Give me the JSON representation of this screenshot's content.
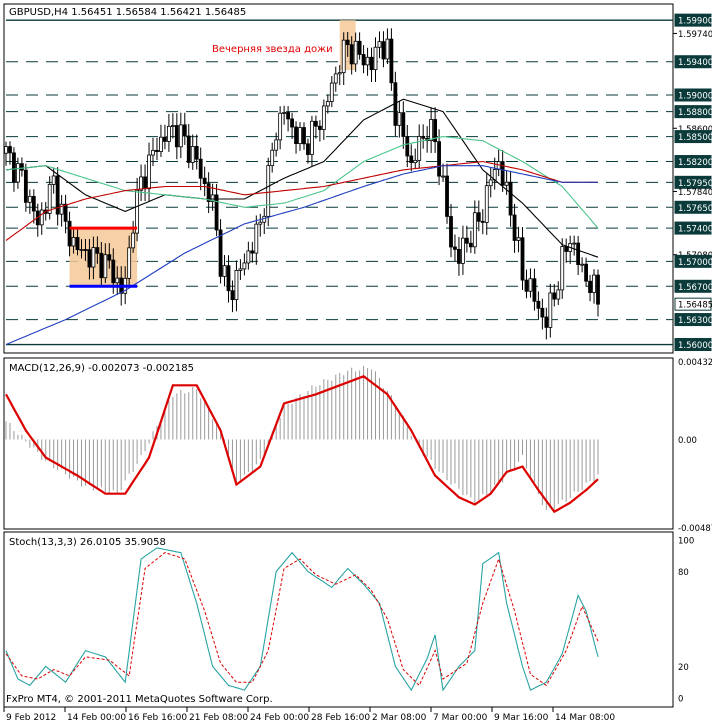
{
  "chart_data": [
    {
      "type": "candlestick",
      "title": "GBPUSD,H4  1.56451 1.56584 1.56421 1.56485",
      "annotation": "Вечерняя звезда дожи",
      "y_axis_labels": [
        {
          "label": "1.59900",
          "boxed": true
        },
        {
          "label": "1.59740",
          "boxed": false
        },
        {
          "label": "1.59400",
          "boxed": true
        },
        {
          "label": "1.59000",
          "boxed": true
        },
        {
          "label": "1.58800",
          "boxed": true
        },
        {
          "label": "1.58600",
          "boxed": false
        },
        {
          "label": "1.58500",
          "boxed": true
        },
        {
          "label": "1.58200",
          "boxed": true
        },
        {
          "label": "1.57950",
          "boxed": true
        },
        {
          "label": "1.57840",
          "boxed": false
        },
        {
          "label": "1.57650",
          "boxed": true
        },
        {
          "label": "1.57400",
          "boxed": true
        },
        {
          "label": "1.57080",
          "boxed": false
        },
        {
          "label": "1.57000",
          "boxed": true
        },
        {
          "label": "1.56700",
          "boxed": true
        },
        {
          "label": "1.56485",
          "boxed": true,
          "current": true
        },
        {
          "label": "1.56300",
          "boxed": true
        },
        {
          "label": "1.56000",
          "boxed": true
        }
      ],
      "horizontal_levels": [
        1.599,
        1.594,
        1.59,
        1.588,
        1.585,
        1.582,
        1.5795,
        1.5765,
        1.574,
        1.57,
        1.567,
        1.563,
        1.56
      ],
      "ylim": [
        1.5591,
        1.6007
      ],
      "n_bars": 150,
      "closes_key": [
        [
          0,
          1.583
        ],
        [
          4,
          1.58
        ],
        [
          8,
          1.5745
        ],
        [
          12,
          1.5795
        ],
        [
          15,
          1.574
        ],
        [
          18,
          1.5715
        ],
        [
          22,
          1.5705
        ],
        [
          26,
          1.5695
        ],
        [
          29,
          1.5665
        ],
        [
          30,
          1.5675
        ],
        [
          32,
          1.575
        ],
        [
          34,
          1.5795
        ],
        [
          38,
          1.584
        ],
        [
          42,
          1.586
        ],
        [
          45,
          1.5845
        ],
        [
          48,
          1.582
        ],
        [
          50,
          1.579
        ],
        [
          52,
          1.577
        ],
        [
          54,
          1.57
        ],
        [
          56,
          1.566
        ],
        [
          58,
          1.568
        ],
        [
          60,
          1.57
        ],
        [
          62,
          1.572
        ],
        [
          64,
          1.5745
        ],
        [
          66,
          1.58
        ],
        [
          68,
          1.586
        ],
        [
          70,
          1.588
        ],
        [
          72,
          1.586
        ],
        [
          75,
          1.584
        ],
        [
          78,
          1.586
        ],
        [
          80,
          1.588
        ],
        [
          82,
          1.591
        ],
        [
          84,
          1.594
        ],
        [
          86,
          1.596
        ],
        [
          88,
          1.595
        ],
        [
          90,
          1.5945
        ],
        [
          92,
          1.5935
        ],
        [
          94,
          1.5965
        ],
        [
          96,
          1.595
        ],
        [
          98,
          1.588
        ],
        [
          100,
          1.585
        ],
        [
          102,
          1.5815
        ],
        [
          104,
          1.584
        ],
        [
          106,
          1.586
        ],
        [
          108,
          1.5845
        ],
        [
          110,
          1.579
        ],
        [
          112,
          1.572
        ],
        [
          114,
          1.5705
        ],
        [
          116,
          1.5725
        ],
        [
          118,
          1.574
        ],
        [
          120,
          1.576
        ],
        [
          122,
          1.58
        ],
        [
          124,
          1.582
        ],
        [
          126,
          1.578
        ],
        [
          128,
          1.574
        ],
        [
          130,
          1.568
        ],
        [
          132,
          1.567
        ],
        [
          134,
          1.564
        ],
        [
          136,
          1.563
        ],
        [
          138,
          1.566
        ],
        [
          140,
          1.57
        ],
        [
          142,
          1.573
        ],
        [
          144,
          1.57
        ],
        [
          146,
          1.568
        ],
        [
          148,
          1.5665
        ],
        [
          149,
          1.56485
        ]
      ],
      "moving_averages": [
        {
          "name": "",
          "color": "#000000",
          "points": [
            [
              0,
              1.581
            ],
            [
              10,
              1.5815
            ],
            [
              20,
              1.578
            ],
            [
              30,
              1.576
            ],
            [
              40,
              1.578
            ],
            [
              50,
              1.5775
            ],
            [
              60,
              1.5775
            ],
            [
              70,
              1.58
            ],
            [
              80,
              1.582
            ],
            [
              90,
              1.587
            ],
            [
              100,
              1.5895
            ],
            [
              110,
              1.588
            ],
            [
              120,
              1.581
            ],
            [
              130,
              1.577
            ],
            [
              140,
              1.572
            ],
            [
              149,
              1.5705
            ]
          ]
        },
        {
          "name": "",
          "color": "#4ac48a",
          "points": [
            [
              0,
              1.581
            ],
            [
              10,
              1.5815
            ],
            [
              20,
              1.58
            ],
            [
              30,
              1.5785
            ],
            [
              40,
              1.578
            ],
            [
              50,
              1.5775
            ],
            [
              60,
              1.5765
            ],
            [
              70,
              1.577
            ],
            [
              80,
              1.5785
            ],
            [
              90,
              1.582
            ],
            [
              100,
              1.584
            ],
            [
              110,
              1.585
            ],
            [
              120,
              1.5845
            ],
            [
              130,
              1.582
            ],
            [
              140,
              1.579
            ],
            [
              149,
              1.574
            ]
          ]
        },
        {
          "name": "",
          "color": "#c00000",
          "points": [
            [
              0,
              1.5725
            ],
            [
              10,
              1.576
            ],
            [
              20,
              1.5775
            ],
            [
              30,
              1.5785
            ],
            [
              40,
              1.579
            ],
            [
              50,
              1.579
            ],
            [
              60,
              1.578
            ],
            [
              70,
              1.5785
            ],
            [
              80,
              1.579
            ],
            [
              90,
              1.58
            ],
            [
              100,
              1.581
            ],
            [
              110,
              1.5815
            ],
            [
              120,
              1.582
            ],
            [
              130,
              1.581
            ],
            [
              140,
              1.5795
            ],
            [
              149,
              1.5795
            ]
          ]
        },
        {
          "name": "",
          "color": "#1f3fbf",
          "points": [
            [
              0,
              1.56
            ],
            [
              15,
              1.563
            ],
            [
              30,
              1.5665
            ],
            [
              45,
              1.571
            ],
            [
              60,
              1.5745
            ],
            [
              75,
              1.5765
            ],
            [
              90,
              1.579
            ],
            [
              100,
              1.5805
            ],
            [
              110,
              1.5815
            ],
            [
              120,
              1.5815
            ],
            [
              130,
              1.5805
            ],
            [
              140,
              1.5795
            ],
            [
              149,
              1.5795
            ]
          ]
        }
      ],
      "highlight_boxes": [
        {
          "x": [
            16,
            33
          ],
          "y": [
            1.567,
            1.574
          ],
          "color": "#f5c896"
        },
        {
          "x": [
            84,
            88
          ],
          "y": [
            1.593,
            1.599
          ],
          "color": "#f5c896"
        }
      ],
      "marker_lines": [
        {
          "x": [
            16,
            33
          ],
          "y": 1.574,
          "color": "#ff0000"
        },
        {
          "x": [
            16,
            33
          ],
          "y": 1.567,
          "color": "#0000ff"
        }
      ],
      "x_tick_labels": [
        "9 Feb 2012",
        "14 Feb 00:00",
        "16 Feb 16:00",
        "21 Feb 08:00",
        "24 Feb 00:00",
        "28 Feb 16:00",
        "2 Mar 08:00",
        "7 Mar 00:00",
        "9 Mar 16:00",
        "14 Mar 08:00"
      ]
    },
    {
      "type": "bar+line",
      "title": "MACD(12,26,9) -0.002073 -0.002185",
      "y_axis_labels": [
        "0.004326",
        "0.00",
        "-0.004876"
      ],
      "ylim": [
        -0.0049,
        0.0044
      ],
      "histogram_key": [
        [
          0,
          0.001
        ],
        [
          10,
          -0.0012
        ],
        [
          20,
          -0.0026
        ],
        [
          28,
          -0.003
        ],
        [
          34,
          -0.001
        ],
        [
          42,
          0.0025
        ],
        [
          48,
          0.0028
        ],
        [
          54,
          0.0005
        ],
        [
          58,
          -0.0025
        ],
        [
          64,
          -0.0012
        ],
        [
          70,
          0.0018
        ],
        [
          78,
          0.003
        ],
        [
          86,
          0.0038
        ],
        [
          92,
          0.004
        ],
        [
          98,
          0.002
        ],
        [
          104,
          -0.0005
        ],
        [
          110,
          -0.002
        ],
        [
          118,
          -0.0035
        ],
        [
          124,
          -0.0025
        ],
        [
          130,
          -0.001
        ],
        [
          136,
          -0.004
        ],
        [
          142,
          -0.0032
        ],
        [
          149,
          -0.002
        ]
      ],
      "signal_key": [
        [
          0,
          0.0025
        ],
        [
          5,
          0.0005
        ],
        [
          10,
          -0.001
        ],
        [
          18,
          -0.002
        ],
        [
          25,
          -0.003
        ],
        [
          30,
          -0.003
        ],
        [
          36,
          -0.001
        ],
        [
          42,
          0.003
        ],
        [
          48,
          0.003
        ],
        [
          54,
          0.0005
        ],
        [
          58,
          -0.0025
        ],
        [
          64,
          -0.0015
        ],
        [
          70,
          0.002
        ],
        [
          78,
          0.0025
        ],
        [
          84,
          0.003
        ],
        [
          90,
          0.0035
        ],
        [
          96,
          0.0025
        ],
        [
          102,
          0.0005
        ],
        [
          108,
          -0.002
        ],
        [
          114,
          -0.0032
        ],
        [
          118,
          -0.0036
        ],
        [
          122,
          -0.003
        ],
        [
          126,
          -0.0018
        ],
        [
          130,
          -0.0015
        ],
        [
          134,
          -0.0028
        ],
        [
          138,
          -0.004
        ],
        [
          142,
          -0.0035
        ],
        [
          146,
          -0.0028
        ],
        [
          149,
          -0.0022
        ]
      ]
    },
    {
      "type": "line",
      "title": "Stoch(13,3,3) 26.0105 35.9058",
      "y_axis_labels": [
        "100",
        "80",
        "20",
        "0"
      ],
      "ylim": [
        0,
        100
      ],
      "main_key": [
        [
          0,
          30
        ],
        [
          3,
          12
        ],
        [
          6,
          8
        ],
        [
          10,
          20
        ],
        [
          15,
          10
        ],
        [
          20,
          30
        ],
        [
          25,
          26
        ],
        [
          30,
          10
        ],
        [
          34,
          88
        ],
        [
          38,
          95
        ],
        [
          44,
          92
        ],
        [
          48,
          60
        ],
        [
          52,
          20
        ],
        [
          56,
          8
        ],
        [
          60,
          5
        ],
        [
          64,
          20
        ],
        [
          68,
          80
        ],
        [
          72,
          92
        ],
        [
          76,
          80
        ],
        [
          82,
          70
        ],
        [
          86,
          82
        ],
        [
          90,
          72
        ],
        [
          94,
          60
        ],
        [
          98,
          20
        ],
        [
          102,
          5
        ],
        [
          106,
          25
        ],
        [
          108,
          40
        ],
        [
          110,
          5
        ],
        [
          114,
          20
        ],
        [
          118,
          30
        ],
        [
          120,
          85
        ],
        [
          124,
          92
        ],
        [
          126,
          60
        ],
        [
          130,
          20
        ],
        [
          132,
          5
        ],
        [
          136,
          10
        ],
        [
          140,
          28
        ],
        [
          144,
          65
        ],
        [
          146,
          55
        ],
        [
          149,
          26
        ]
      ],
      "signal_key": [
        [
          0,
          28
        ],
        [
          4,
          14
        ],
        [
          8,
          12
        ],
        [
          12,
          18
        ],
        [
          16,
          14
        ],
        [
          20,
          26
        ],
        [
          26,
          24
        ],
        [
          31,
          14
        ],
        [
          35,
          82
        ],
        [
          40,
          92
        ],
        [
          45,
          88
        ],
        [
          50,
          55
        ],
        [
          54,
          22
        ],
        [
          58,
          10
        ],
        [
          62,
          10
        ],
        [
          66,
          30
        ],
        [
          70,
          82
        ],
        [
          74,
          88
        ],
        [
          78,
          78
        ],
        [
          83,
          72
        ],
        [
          88,
          78
        ],
        [
          92,
          68
        ],
        [
          96,
          50
        ],
        [
          100,
          18
        ],
        [
          104,
          8
        ],
        [
          108,
          30
        ],
        [
          110,
          12
        ],
        [
          116,
          22
        ],
        [
          120,
          60
        ],
        [
          124,
          88
        ],
        [
          128,
          55
        ],
        [
          132,
          15
        ],
        [
          136,
          8
        ],
        [
          141,
          30
        ],
        [
          145,
          58
        ],
        [
          149,
          36
        ]
      ]
    }
  ],
  "footer_text": "FxPro MT4, © 2001-2011 MetaQuotes Software Corp."
}
